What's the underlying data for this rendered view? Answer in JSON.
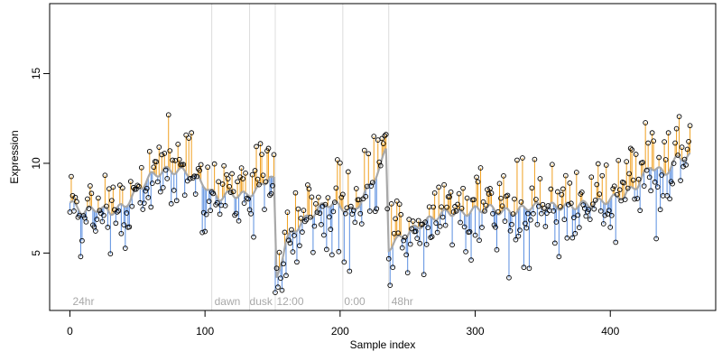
{
  "chart_data": {
    "type": "scatter",
    "title": "",
    "xlabel": "Sample index",
    "ylabel": "Expression",
    "xlim": [
      -15,
      478
    ],
    "ylim": [
      1.8,
      18.9
    ],
    "x_ticks": [
      0,
      100,
      200,
      300,
      400
    ],
    "y_ticks": [
      5,
      10,
      15
    ],
    "grid": false,
    "legend": "none",
    "colors": {
      "above_fit": "#f0a020",
      "below_fit": "#5a8ee0",
      "fit_line": "#a8a8a8",
      "period_line": "#dcdcdc",
      "point_edge": "#000000"
    },
    "period_boundaries": [
      105,
      133,
      152,
      202,
      236
    ],
    "period_labels": [
      {
        "x": 2,
        "label": "24hr"
      },
      {
        "x": 107,
        "label": "dawn"
      },
      {
        "x": 133,
        "label": "dusk"
      },
      {
        "x": 153,
        "label": "12:00"
      },
      {
        "x": 203,
        "label": "0:00"
      },
      {
        "x": 238,
        "label": "48hr"
      }
    ],
    "fit_anchors": {
      "x": [
        0,
        10,
        20,
        30,
        40,
        50,
        60,
        70,
        80,
        90,
        100,
        104,
        110,
        120,
        130,
        140,
        148,
        151,
        153,
        160,
        170,
        180,
        190,
        200,
        210,
        220,
        230,
        234,
        236,
        240,
        250,
        260,
        270,
        280,
        290,
        300,
        310,
        320,
        330,
        340,
        350,
        360,
        370,
        380,
        390,
        400,
        410,
        420,
        430,
        440,
        450,
        460
      ],
      "y": [
        7.8,
        7.3,
        7.5,
        7.3,
        7.6,
        8.5,
        9.3,
        9.6,
        9.6,
        9.4,
        8.8,
        8.4,
        8.1,
        8.3,
        8.2,
        8.6,
        9.3,
        9.0,
        3.5,
        5.7,
        6.6,
        7.2,
        7.8,
        7.6,
        7.3,
        8.5,
        9.8,
        10.8,
        5.3,
        5.6,
        6.1,
        6.6,
        7.0,
        7.3,
        7.2,
        7.4,
        7.5,
        7.3,
        7.3,
        7.6,
        7.6,
        7.6,
        7.6,
        7.7,
        7.8,
        8.0,
        8.2,
        8.8,
        9.9,
        9.4,
        10.3,
        10.4
      ]
    },
    "peaks": [
      {
        "x": 90,
        "y": 11.7
      },
      {
        "x": 88,
        "y": 11.4
      },
      {
        "x": 74,
        "y": 10.7
      },
      {
        "x": 66,
        "y": 10.9
      },
      {
        "x": 225,
        "y": 11.5
      },
      {
        "x": 228,
        "y": 11.3
      },
      {
        "x": 232,
        "y": 11.1
      },
      {
        "x": 198,
        "y": 10.2
      },
      {
        "x": 459,
        "y": 12.1
      },
      {
        "x": 431,
        "y": 11.7
      },
      {
        "x": 443,
        "y": 11.7
      },
      {
        "x": 440,
        "y": 11.2
      },
      {
        "x": 453,
        "y": 10.9
      },
      {
        "x": 397,
        "y": 9.9
      },
      {
        "x": 335,
        "y": 10.3
      },
      {
        "x": 419,
        "y": 10.5
      }
    ],
    "troughs": [
      {
        "x": 152,
        "y": 2.8
      },
      {
        "x": 154,
        "y": 3.1
      },
      {
        "x": 156,
        "y": 3.6
      },
      {
        "x": 158,
        "y": 4.4
      },
      {
        "x": 237,
        "y": 3.2
      },
      {
        "x": 239,
        "y": 4.2
      },
      {
        "x": 8,
        "y": 4.8
      },
      {
        "x": 100,
        "y": 6.2
      },
      {
        "x": 190,
        "y": 5.2
      },
      {
        "x": 194,
        "y": 4.9
      },
      {
        "x": 250,
        "y": 3.9
      },
      {
        "x": 262,
        "y": 3.8
      },
      {
        "x": 336,
        "y": 4.2
      },
      {
        "x": 362,
        "y": 4.8
      },
      {
        "x": 434,
        "y": 5.8
      },
      {
        "x": 404,
        "y": 5.6
      }
    ],
    "n_points": 460,
    "noise_sd": 1.05
  }
}
